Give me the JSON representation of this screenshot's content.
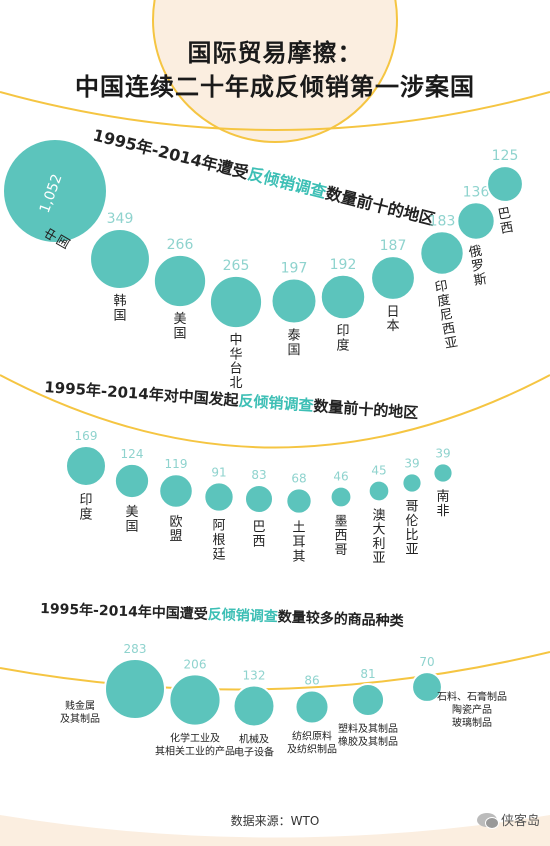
{
  "header": {
    "title_line1": "国际贸易摩擦：",
    "title_line2": "中国连续二十年成反倾销第一涉案国"
  },
  "colors": {
    "bubble": "#5cc4bc",
    "bubble_outline": "#ffffff",
    "value_text": "#8fd3ce",
    "accent_text": "#3dbfb5",
    "arc": "#f5c542",
    "top_circle": "#fbeee0",
    "text": "#222222"
  },
  "chart_data": [
    {
      "type": "bubble",
      "title_parts": [
        {
          "text": "1995年-2014年遭受",
          "accent": false
        },
        {
          "text": "反倾销调查",
          "accent": true
        },
        {
          "text": "数量前十的地区",
          "accent": false
        }
      ],
      "categories": [
        "中国",
        "韩国",
        "美国",
        "中华台北",
        "泰国",
        "印度",
        "日本",
        "印度尼西亚",
        "俄罗斯",
        "巴西"
      ],
      "values": [
        1052,
        349,
        266,
        265,
        197,
        192,
        187,
        183,
        136,
        125
      ],
      "value_labels": [
        "1,052",
        "349",
        "266",
        "265",
        "197",
        "192",
        "187",
        "183",
        "136",
        "125"
      ]
    },
    {
      "type": "bubble",
      "title_parts": [
        {
          "text": "1995年-2014年对中国发起",
          "accent": false
        },
        {
          "text": "反倾销调查",
          "accent": true
        },
        {
          "text": "数量前十的地区",
          "accent": false
        }
      ],
      "categories": [
        "印度",
        "美国",
        "欧盟",
        "阿根廷",
        "巴西",
        "土耳其",
        "墨西哥",
        "澳大利亚",
        "哥伦比亚",
        "南非"
      ],
      "values": [
        169,
        124,
        119,
        91,
        83,
        68,
        46,
        45,
        39,
        39
      ],
      "value_labels": [
        "169",
        "124",
        "119",
        "91",
        "83",
        "68",
        "46",
        "45",
        "39",
        "39"
      ]
    },
    {
      "type": "bubble",
      "title_parts": [
        {
          "text": "1995年-2014年中国遭受",
          "accent": false
        },
        {
          "text": "反倾销调查",
          "accent": true
        },
        {
          "text": "数量较多的商品种类",
          "accent": false
        }
      ],
      "categories": [
        [
          "贱金属",
          "及其制品"
        ],
        [
          "化学工业及",
          "其相关工业的产品"
        ],
        [
          "机械及",
          "电子设备"
        ],
        [
          "纺织原料",
          "及纺织制品"
        ],
        [
          "塑料及其制品",
          "橡胶及其制品"
        ],
        [
          "石料、石膏制品",
          "陶瓷产品",
          "玻璃制品"
        ]
      ],
      "values": [
        283,
        206,
        132,
        86,
        81,
        70
      ],
      "value_labels": [
        "283",
        "206",
        "132",
        "86",
        "81",
        "70"
      ]
    }
  ],
  "footer": {
    "source": "数据来源：WTO",
    "watermark": "侠客岛"
  }
}
